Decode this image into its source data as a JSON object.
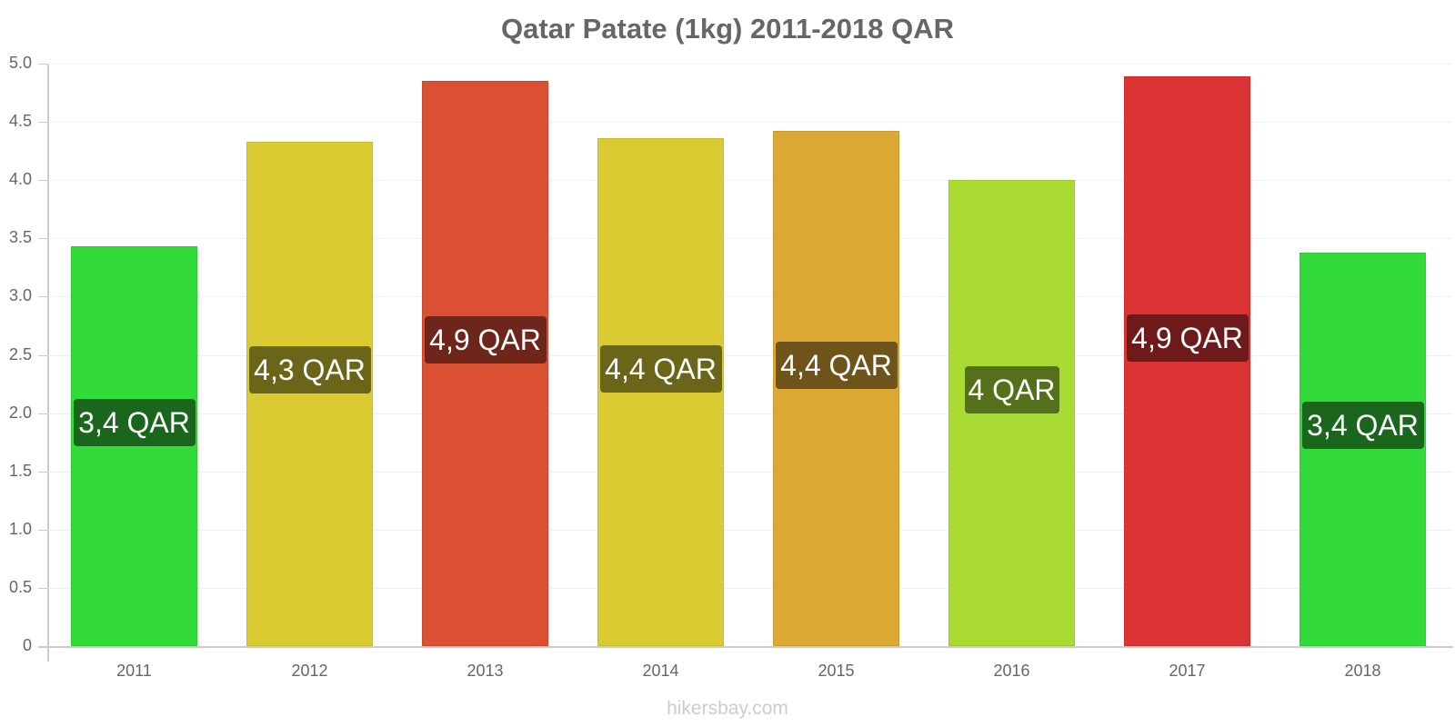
{
  "chart_data": {
    "type": "bar",
    "title": "Qatar Patate (1kg) 2011-2018 QAR",
    "xlabel": "",
    "ylabel": "",
    "ylim": [
      0,
      5.0
    ],
    "yticks": [
      "0",
      "0.5",
      "1.0",
      "1.5",
      "2.0",
      "2.5",
      "3.0",
      "3.5",
      "4.0",
      "4.5",
      "5.0"
    ],
    "grid": true,
    "legend": null,
    "categories": [
      "2011",
      "2012",
      "2013",
      "2014",
      "2015",
      "2016",
      "2017",
      "2018"
    ],
    "values": [
      3.43,
      4.33,
      4.85,
      4.36,
      4.42,
      4.0,
      4.89,
      3.38
    ],
    "data_labels": [
      "3,4 QAR",
      "4,3 QAR",
      "4,9 QAR",
      "4,4 QAR",
      "4,4 QAR",
      "4 QAR",
      "4,9 QAR",
      "3,4 QAR"
    ],
    "bar_colors": [
      "#33db3a",
      "#dbcb33",
      "#db5033",
      "#dbcb33",
      "#dba833",
      "#aadb33",
      "#db3333",
      "#33db3a"
    ],
    "label_colors": [
      "#1a661c",
      "#6b6519",
      "#6e261a",
      "#6b6519",
      "#6e531a",
      "#55701a",
      "#6e1a1a",
      "#1a661c"
    ]
  },
  "footer": {
    "watermark": "hikersbay.com"
  }
}
